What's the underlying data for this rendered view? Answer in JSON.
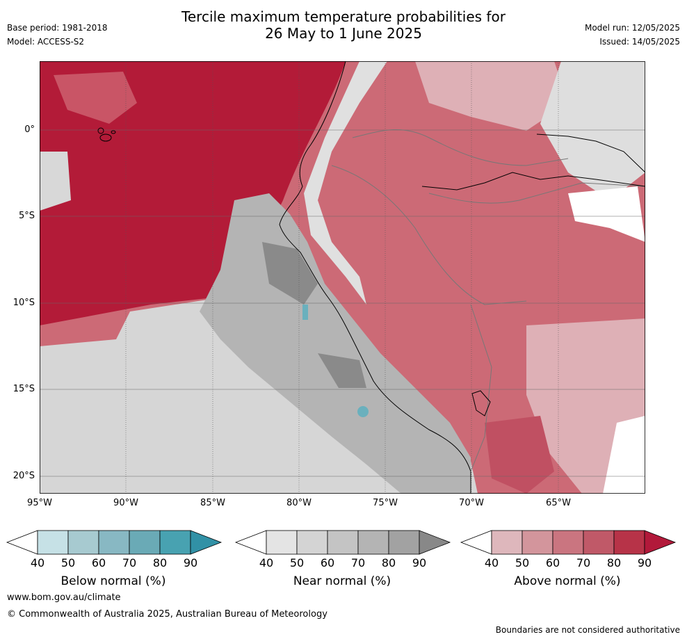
{
  "header": {
    "title_line1": "Tercile maximum temperature probabilities for",
    "title_line2": "26 May to 1 June 2025",
    "base_period": "Base period: 1981-2018",
    "model": "Model: ACCESS-S2",
    "model_run": "Model run: 12/05/2025",
    "issued": "Issued: 14/05/2025"
  },
  "map": {
    "latitude_labels": [
      "0°",
      "5°S",
      "10°S",
      "15°S",
      "20°S"
    ],
    "longitude_labels": [
      "95°W",
      "90°W",
      "85°W",
      "80°W",
      "75°W",
      "70°W",
      "65°W"
    ],
    "colors": {
      "above_dark": "#b31b38",
      "above_mid": "#cc6a76",
      "above_light": "#deb0b6",
      "near_dark": "#8a8a8a",
      "near_mid": "#b4b4b4",
      "near_light": "#d8d8d8",
      "below": "#6ab0bd"
    }
  },
  "legends": [
    {
      "name": "Below normal (%)",
      "ticks": [
        "40",
        "50",
        "60",
        "70",
        "80",
        "90"
      ],
      "colors": [
        "#ffffff",
        "#c6e1e6",
        "#a7cad0",
        "#88b8c3",
        "#6aaab6",
        "#48a2b1",
        "#3191a6"
      ]
    },
    {
      "name": "Near normal (%)",
      "ticks": [
        "40",
        "50",
        "60",
        "70",
        "80",
        "90"
      ],
      "colors": [
        "#ffffff",
        "#e4e4e4",
        "#d4d4d4",
        "#c4c4c4",
        "#b4b4b4",
        "#a2a2a2",
        "#888888"
      ]
    },
    {
      "name": "Above normal (%)",
      "ticks": [
        "40",
        "50",
        "60",
        "70",
        "80",
        "90"
      ],
      "colors": [
        "#ffffff",
        "#deb7bc",
        "#d3959c",
        "#ca7580",
        "#c05968",
        "#b73348",
        "#b2193a"
      ]
    }
  ],
  "footer": {
    "website": "www.bom.gov.au/climate",
    "copyright": "© Commonwealth of Australia 2025, Australian Bureau of Meteorology",
    "disclaimer": "Boundaries are not considered authoritative"
  }
}
